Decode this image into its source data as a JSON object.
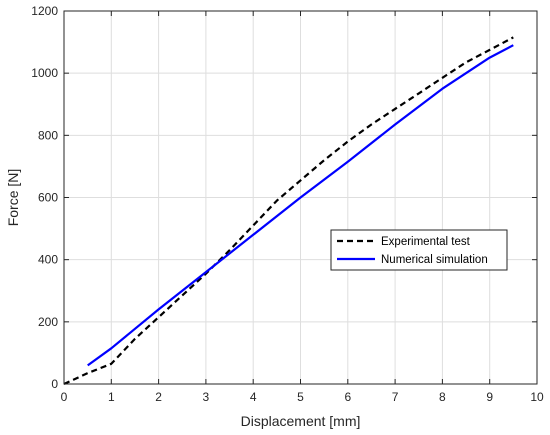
{
  "chart_data": {
    "type": "line",
    "title": "",
    "xlabel": "Displacement [mm]",
    "ylabel": "Force [N]",
    "xlim": [
      0,
      10
    ],
    "ylim": [
      0,
      1200
    ],
    "xticks": [
      0,
      1,
      2,
      3,
      4,
      5,
      6,
      7,
      8,
      9,
      10
    ],
    "yticks": [
      0,
      200,
      400,
      600,
      800,
      1000,
      1200
    ],
    "grid": true,
    "legend_position": "center-right",
    "series": [
      {
        "name": "Experimental test",
        "color": "#000000",
        "style": "dashed",
        "x": [
          0,
          0.5,
          1.0,
          1.5,
          2.0,
          2.5,
          3.0,
          3.5,
          4.0,
          4.5,
          5.0,
          5.5,
          6.0,
          6.5,
          7.0,
          7.5,
          8.0,
          8.5,
          9.0,
          9.5
        ],
        "y": [
          0,
          35,
          65,
          145,
          215,
          285,
          355,
          430,
          510,
          590,
          655,
          720,
          780,
          835,
          885,
          935,
          985,
          1035,
          1075,
          1115
        ]
      },
      {
        "name": "Numerical simulation",
        "color": "#0000ff",
        "style": "solid",
        "x": [
          0.5,
          1.0,
          2.0,
          3.0,
          4.0,
          5.0,
          6.0,
          7.0,
          8.0,
          9.0,
          9.5
        ],
        "y": [
          60,
          115,
          240,
          360,
          480,
          600,
          715,
          835,
          950,
          1050,
          1090
        ]
      }
    ]
  }
}
